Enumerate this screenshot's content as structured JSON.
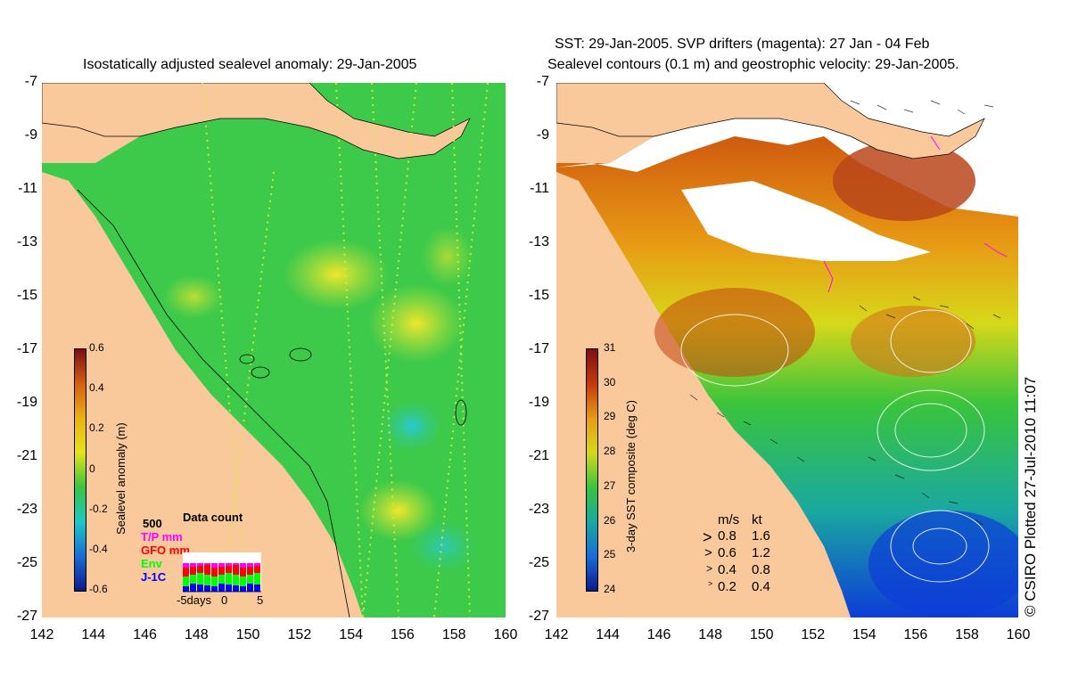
{
  "left": {
    "title": "Isostatically adjusted sealevel anomaly: 29-Jan-2005",
    "colorbar": {
      "label": "Sealevel anomaly (m)",
      "ticks": [
        "0.6",
        "0.4",
        "0.2",
        "0",
        "-0.2",
        "-0.4",
        "-0.6"
      ]
    },
    "data_count": {
      "title": "Data count",
      "max": "500",
      "series": [
        {
          "name": "T/P mm",
          "color": "#ff00ff"
        },
        {
          "name": "GFO mm",
          "color": "#ff0000"
        },
        {
          "name": "Env",
          "color": "#00ff00"
        },
        {
          "name": "J-1C",
          "color": "#0000ff"
        }
      ],
      "xlabels": [
        "-5days",
        "0",
        "5"
      ]
    }
  },
  "right": {
    "title_line1": "SST: 29-Jan-2005. SVP drifters (magenta): 27 Jan - 04 Feb",
    "title_line2": "Sealevel contours (0.1 m) and geostrophic velocity: 29-Jan-2005.",
    "colorbar": {
      "label": "3-day SST composite (deg C)",
      "ticks": [
        "31",
        "30",
        "29",
        "28",
        "27",
        "26",
        "25",
        "24"
      ]
    },
    "velocity_legend": {
      "header_ms": "m/s",
      "header_kt": "kt",
      "rows": [
        {
          "ms": "0.8",
          "kt": "1.6"
        },
        {
          "ms": "0.6",
          "kt": "1.2"
        },
        {
          "ms": "0.4",
          "kt": "0.8"
        },
        {
          "ms": "0.2",
          "kt": "0.4"
        }
      ]
    }
  },
  "axes": {
    "y_ticks": [
      "-7",
      "-9",
      "-11",
      "-13",
      "-15",
      "-17",
      "-19",
      "-21",
      "-23",
      "-25",
      "-27"
    ],
    "x_ticks": [
      "142",
      "144",
      "146",
      "148",
      "150",
      "152",
      "154",
      "156",
      "158",
      "160"
    ]
  },
  "copyright": "© CSIRO Plotted 27-Jul-2010 11:07",
  "colors": {
    "land": "#f9c89b",
    "sea_base": "#33cc44",
    "cloud": "#ffffff"
  }
}
